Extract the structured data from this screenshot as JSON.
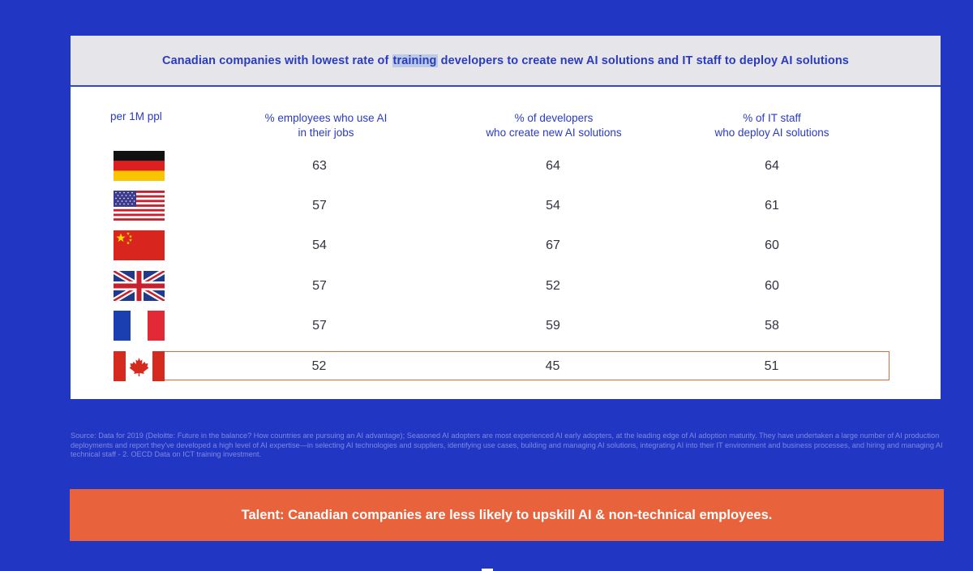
{
  "card": {
    "title_before": "Canadian companies with lowest rate of ",
    "title_highlight": "training",
    "title_after": " developers to create new AI solutions and IT staff to deploy AI solutions"
  },
  "columns": {
    "c0": "per 1M ppl",
    "c1_l1": "% employees who use AI",
    "c1_l2": "in their jobs",
    "c2_l1": "% of developers",
    "c2_l2": "who create new AI solutions",
    "c3_l1": "% of IT staff",
    "c3_l2": "who deploy AI solutions"
  },
  "rows": [
    {
      "flag": "germany-flag-icon",
      "employees": "63",
      "developers": "64",
      "it_staff": "64"
    },
    {
      "flag": "usa-flag-icon",
      "employees": "57",
      "developers": "54",
      "it_staff": "61"
    },
    {
      "flag": "china-flag-icon",
      "employees": "54",
      "developers": "67",
      "it_staff": "60"
    },
    {
      "flag": "uk-flag-icon",
      "employees": "57",
      "developers": "52",
      "it_staff": "60"
    },
    {
      "flag": "france-flag-icon",
      "employees": "57",
      "developers": "59",
      "it_staff": "58"
    },
    {
      "flag": "canada-flag-icon",
      "employees": "52",
      "developers": "45",
      "it_staff": "51"
    }
  ],
  "source_text": "Source: Data for 2019 (Deloitte: Future in the balance? How countries are pursuing an AI advantage); Seasoned AI adopters are most experienced AI early adopters, at the leading edge of AI adoption maturity. They have undertaken a large number of AI production deployments and report they've developed a high level of AI expertise—in selecting AI technologies and suppliers, identifying use cases, building and managing AI solutions, integrating AI into their IT environment and business processes, and hiring and managing AI technical staff - 2. OECD Data on ICT training investment.",
  "banner": {
    "text": "Talent: Canadian companies are less likely to upskill AI & non-technical employees."
  },
  "colors": {
    "background": "#2236c4",
    "accent_blue": "#2a3bc0",
    "banner": "#e8623b",
    "highlight_border": "#e8663d"
  }
}
